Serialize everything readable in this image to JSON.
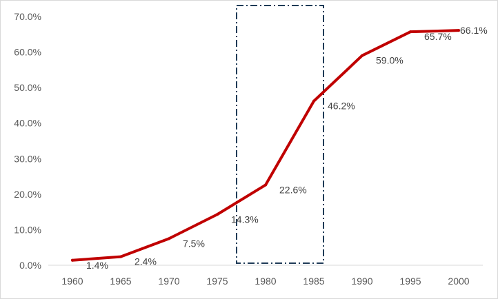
{
  "chart_data": {
    "type": "line",
    "title": "",
    "xlabel": "",
    "ylabel": "",
    "x": [
      1960,
      1965,
      1970,
      1975,
      1980,
      1985,
      1990,
      1995,
      2000
    ],
    "series": [
      {
        "values": [
          1.4,
          2.4,
          7.5,
          14.3,
          22.6,
          46.2,
          59.0,
          65.7,
          66.1
        ],
        "labels": [
          "1.4%",
          "2.4%",
          "7.5%",
          "14.3%",
          "22.6%",
          "46.2%",
          "59.0%",
          "65.7%",
          "66.1%"
        ],
        "color": "#c00000"
      }
    ],
    "ylim": [
      0,
      70
    ],
    "yticks": [
      "0.0%",
      "10.0%",
      "20.0%",
      "30.0%",
      "40.0%",
      "50.0%",
      "60.0%",
      "70.0%"
    ],
    "xticks": [
      "1960",
      "1965",
      "1970",
      "1975",
      "1980",
      "1985",
      "1990",
      "1995",
      "2000"
    ],
    "grid": false,
    "legend": "none",
    "highlight_range": [
      1977,
      1986
    ],
    "highlight_color": "#1f3b57"
  }
}
